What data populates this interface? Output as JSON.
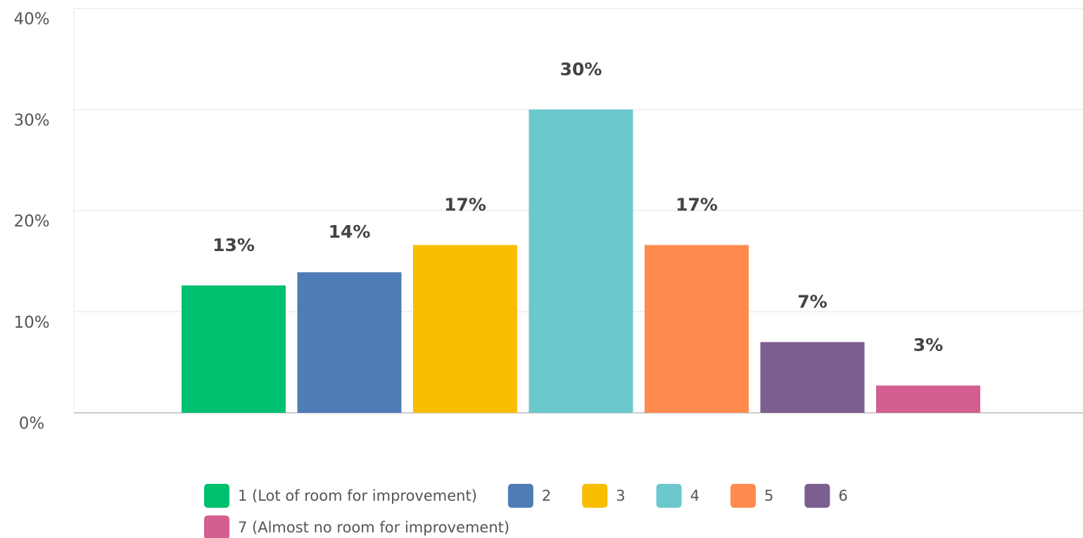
{
  "chart_data": {
    "type": "bar",
    "categories": [
      null
    ],
    "ylim": [
      0,
      40
    ],
    "yticks": [
      {
        "value": 0,
        "label": "0%"
      },
      {
        "value": 10,
        "label": "10%"
      },
      {
        "value": 20,
        "label": "20%"
      },
      {
        "value": 30,
        "label": "30%"
      },
      {
        "value": 40,
        "label": "40%"
      }
    ],
    "grid": true,
    "legend": "bottom",
    "series": [
      {
        "name": "1 (Lot of room for improvement)",
        "color": "#00bf6f",
        "values": [
          12.6
        ],
        "value_labels": [
          "13%"
        ]
      },
      {
        "name": "2",
        "color": "#507cb6",
        "values": [
          13.9
        ],
        "value_labels": [
          "14%"
        ]
      },
      {
        "name": "3",
        "color": "#f9be00",
        "values": [
          16.6
        ],
        "value_labels": [
          "17%"
        ]
      },
      {
        "name": "4",
        "color": "#6bc8cd",
        "values": [
          30
        ],
        "value_labels": [
          "30%"
        ]
      },
      {
        "name": "5",
        "color": "#ff8b4f",
        "values": [
          16.6
        ],
        "value_labels": [
          "17%"
        ]
      },
      {
        "name": "6",
        "color": "#7d5e90",
        "values": [
          7
        ],
        "value_labels": [
          "7%"
        ]
      },
      {
        "name": "7 (Almost no room for improvement)",
        "color": "#d25f90",
        "values": [
          2.7
        ],
        "value_labels": [
          "3%"
        ]
      }
    ]
  }
}
